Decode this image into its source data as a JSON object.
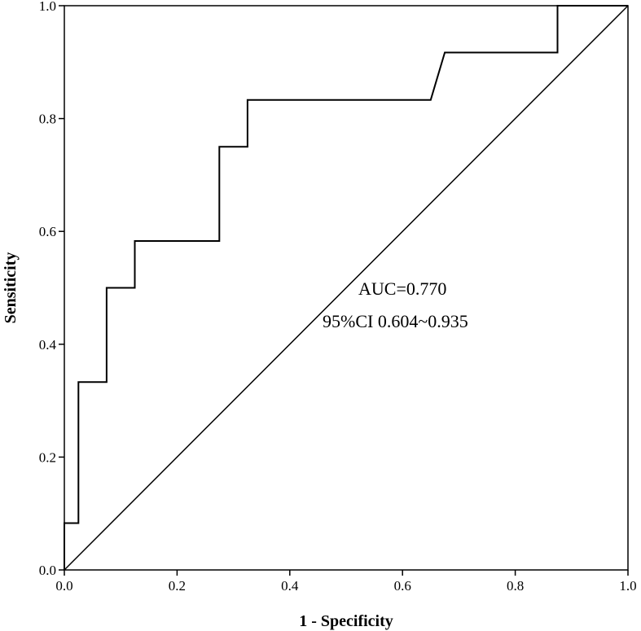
{
  "chart_data": {
    "type": "line",
    "title": "",
    "xlabel": "1 - Specificity",
    "ylabel": "Sensiticity",
    "xlim": [
      0,
      1
    ],
    "ylim": [
      0,
      1
    ],
    "x_ticks": [
      "0.0",
      "0.2",
      "0.4",
      "0.6",
      "0.8",
      "1.0"
    ],
    "y_ticks": [
      "0.0",
      "0.2",
      "0.4",
      "0.6",
      "0.8",
      "1.0"
    ],
    "grid": false,
    "legend": "none",
    "series": [
      {
        "x": [
          0,
          0,
          0.025,
          0.025,
          0.075,
          0.075,
          0.125,
          0.125,
          0.275,
          0.275,
          0.325,
          0.325,
          0.65,
          0.675,
          0.875,
          0.875,
          1.0
        ],
        "y": [
          0,
          0.083,
          0.083,
          0.333,
          0.333,
          0.5,
          0.5,
          0.583,
          0.583,
          0.75,
          0.75,
          0.833,
          0.833,
          0.917,
          0.917,
          1.0,
          1.0
        ]
      },
      {
        "x": [
          0,
          1
        ],
        "y": [
          0,
          1
        ]
      }
    ],
    "annotations": [
      "AUC=0.770",
      "95%CI 0.604~0.935"
    ]
  }
}
